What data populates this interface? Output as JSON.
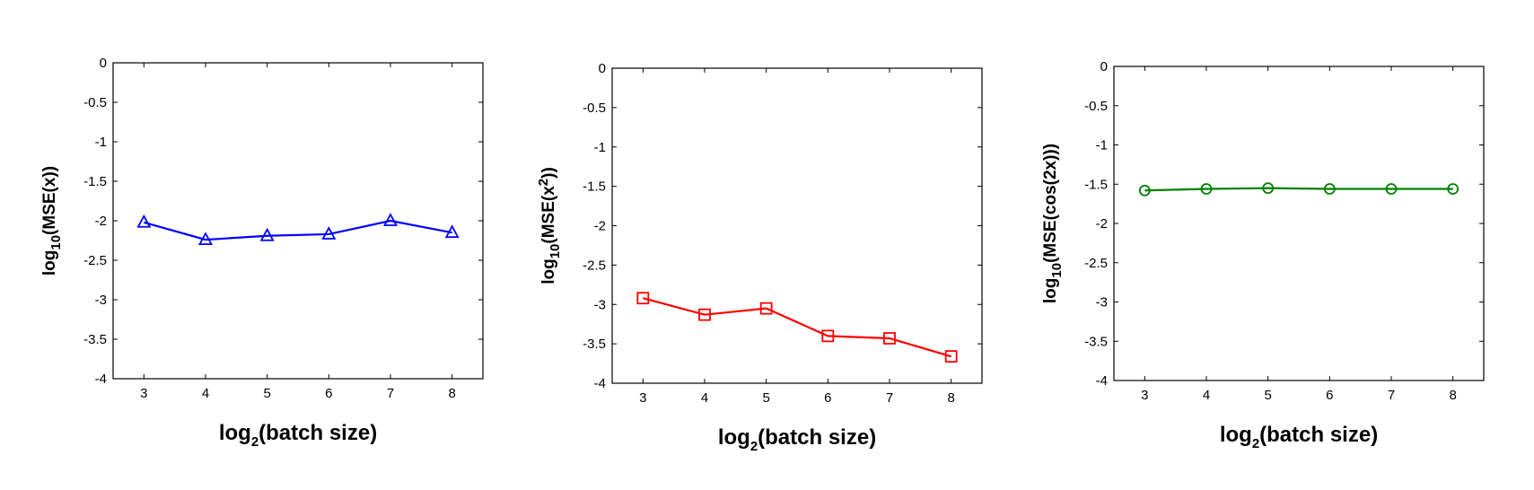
{
  "chart_data": [
    {
      "type": "line",
      "x": [
        3,
        4,
        5,
        6,
        7,
        8
      ],
      "series": [
        {
          "values": [
            -2.02,
            -2.24,
            -2.19,
            -2.17,
            -2.0,
            -2.15
          ],
          "color": "#0000ff",
          "marker": "triangle"
        }
      ],
      "xlabel": {
        "main": "log",
        "sub": "2",
        "rest": "(batch size)"
      },
      "ylabel": {
        "main": "log",
        "sub": "10",
        "rest": "(MSE(x))"
      },
      "xticks": [
        "3",
        "4",
        "5",
        "6",
        "7",
        "8"
      ],
      "yticks": [
        "0",
        "-0.5",
        "-1",
        "-1.5",
        "-2",
        "-2.5",
        "-3",
        "-3.5",
        "-4"
      ],
      "xlim": [
        2.5,
        8.5
      ],
      "ylim": [
        -4,
        0
      ],
      "grid": false
    },
    {
      "type": "line",
      "x": [
        3,
        4,
        5,
        6,
        7,
        8
      ],
      "series": [
        {
          "values": [
            -2.92,
            -3.13,
            -3.05,
            -3.4,
            -3.43,
            -3.66
          ],
          "color": "#ff0000",
          "marker": "square"
        }
      ],
      "xlabel": {
        "main": "log",
        "sub": "2",
        "rest": "(batch size)"
      },
      "ylabel": {
        "main": "log",
        "sub": "10",
        "rest": "(MSE(x",
        "sup": "2",
        "rest2": "))"
      },
      "xticks": [
        "3",
        "4",
        "5",
        "6",
        "7",
        "8"
      ],
      "yticks": [
        "0",
        "-0.5",
        "-1",
        "-1.5",
        "-2",
        "-2.5",
        "-3",
        "-3.5",
        "-4"
      ],
      "xlim": [
        2.5,
        8.5
      ],
      "ylim": [
        -4,
        0
      ],
      "grid": false
    },
    {
      "type": "line",
      "x": [
        3,
        4,
        5,
        6,
        7,
        8
      ],
      "series": [
        {
          "values": [
            -1.58,
            -1.56,
            -1.55,
            -1.56,
            -1.56,
            -1.56
          ],
          "color": "#008000",
          "marker": "circle"
        }
      ],
      "xlabel": {
        "main": "log",
        "sub": "2",
        "rest": "(batch size)"
      },
      "ylabel": {
        "main": "log",
        "sub": "10",
        "rest": "(MSE(cos(2x)))"
      },
      "xticks": [
        "3",
        "4",
        "5",
        "6",
        "7",
        "8"
      ],
      "yticks": [
        "0",
        "-0.5",
        "-1",
        "-1.5",
        "-2",
        "-2.5",
        "-3",
        "-3.5",
        "-4"
      ],
      "xlim": [
        2.5,
        8.5
      ],
      "ylim": [
        -4,
        0
      ],
      "grid": false
    }
  ]
}
